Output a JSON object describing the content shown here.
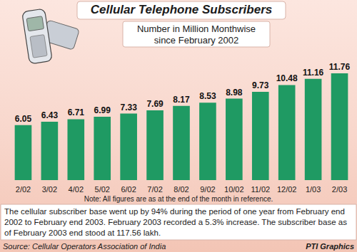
{
  "chart_data": {
    "type": "bar",
    "title": "Cellular Telephone Subscribers",
    "subtitle": "Number in Million Monthwise\nsince February 2002",
    "categories": [
      "2/02",
      "3/02",
      "4/02",
      "5/02",
      "6/02",
      "7/02",
      "8/02",
      "9/02",
      "10/02",
      "11/02",
      "12/02",
      "1/03",
      "2/03"
    ],
    "values": [
      6.05,
      6.43,
      6.71,
      6.99,
      7.33,
      7.69,
      8.17,
      8.53,
      8.98,
      9.73,
      10.48,
      11.16,
      11.76
    ],
    "color": "#1f9a63",
    "ylim": [
      0,
      12
    ],
    "grid": false,
    "data_labels": true,
    "tick_labels": "x",
    "annotations": {
      "note": "Note: All figures are as at the end of the month in reference.",
      "description": "The cellular subscriber base went up by 94% during the period of one year from February end 2002 to February end 2003. February 2003 recorded a 5.3% increase. The subscriber base as of February 2003 end stood at 117.56 lakh.",
      "source": "Source: Cellular Operators Association of India",
      "credit": "PTI Graphics"
    }
  }
}
